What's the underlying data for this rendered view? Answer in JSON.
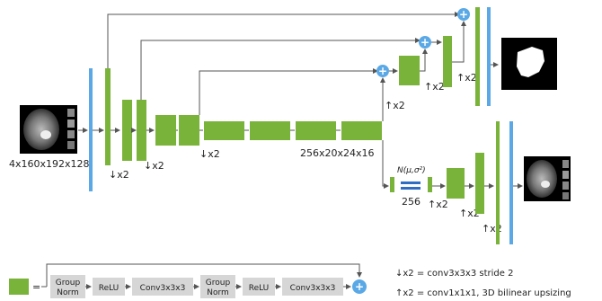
{
  "colors": {
    "block": "#7ab33a",
    "encoder_bar": "#5aa9e6",
    "plus": "#5aa9e6",
    "arrow": "#555555",
    "box": "#d6d6d6",
    "sample_bar": "#2e6fc4"
  },
  "labels": {
    "input_size": "4x160x192x128",
    "down1": "↓x2",
    "down2": "↓x2",
    "down3": "↓x2",
    "bottleneck_size": "256x20x24x16",
    "up1": "↑x2",
    "up2": "↑x2",
    "up3": "↑x2",
    "vae_dist": "N(μ,σ²)",
    "vae_dim": "256",
    "vae_up1": "↑x2",
    "vae_up2": "↑x2",
    "vae_up3": "↑x2"
  },
  "legend": {
    "equals": "=",
    "block_ops": [
      "Group Norm",
      "ReLU",
      "Conv3x3x3",
      "Group Norm",
      "ReLU",
      "Conv3x3x3"
    ],
    "down_def": "↓x2 = conv3x3x3 stride 2",
    "up_def": "↑x2 = conv1x1x1, 3D bilinear upsizing"
  },
  "icons": {
    "plus": "plus-icon",
    "input_image": "brain-mri-input-image",
    "seg_output": "segmentation-mask-image",
    "recon_output": "reconstructed-mri-image"
  }
}
